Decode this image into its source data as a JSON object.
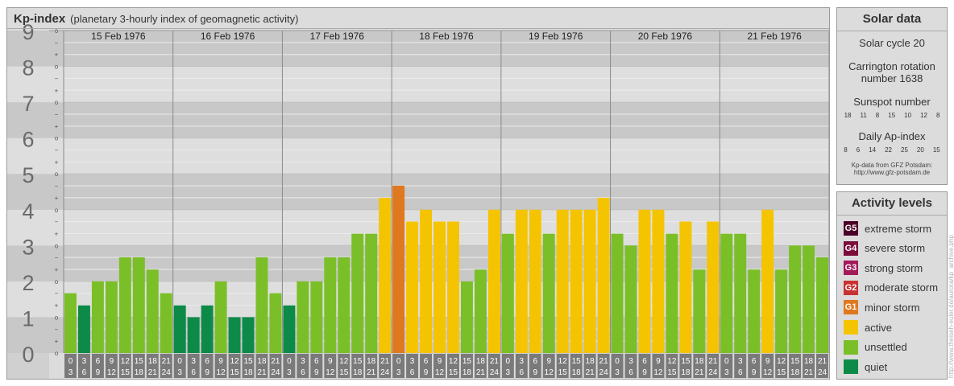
{
  "title": {
    "main": "Kp-index",
    "subtitle": "(planetary 3-hourly index of geomagnetic activity)"
  },
  "solar": {
    "header": "Solar data",
    "cycle": "Solar cycle 20",
    "rotation_line1": "Carrington rotation",
    "rotation_line2": "number 1638",
    "sunspot_label": "Sunspot number",
    "sunspot_values": [
      "18",
      "11",
      "8",
      "15",
      "10",
      "12",
      "8"
    ],
    "ap_label": "Daily Ap-index",
    "ap_values": [
      "8",
      "6",
      "14",
      "22",
      "25",
      "20",
      "15"
    ],
    "source_line1": "Kp-data from GFZ Potsdam:",
    "source_line2": "http://www.gfz-potsdam.de"
  },
  "levels": {
    "header": "Activity levels",
    "items": [
      {
        "badge": "G5",
        "label": "extreme storm",
        "color": "#4b0028"
      },
      {
        "badge": "G4",
        "label": "severe storm",
        "color": "#7b0c3c"
      },
      {
        "badge": "G3",
        "label": "strong storm",
        "color": "#a3195b"
      },
      {
        "badge": "G2",
        "label": "moderate storm",
        "color": "#c83232"
      },
      {
        "badge": "G1",
        "label": "minor storm",
        "color": "#e07820"
      },
      {
        "badge": "",
        "label": "active",
        "color": "#f5c400"
      },
      {
        "badge": "",
        "label": "unsettled",
        "color": "#7bbf28"
      },
      {
        "badge": "",
        "label": "quiet",
        "color": "#0e8a48"
      }
    ]
  },
  "watermark": "http://www.theiseh-euler.de/aurora/kp_archive.php",
  "chart_data": {
    "type": "bar",
    "title": "Kp-index",
    "ylim": [
      0,
      9
    ],
    "y_ticks": [
      "0",
      "1",
      "2",
      "3",
      "4",
      "5",
      "6",
      "7",
      "8",
      "9"
    ],
    "sub_ticks": [
      "o",
      "−",
      "+"
    ],
    "days": [
      "15 Feb 1976",
      "16 Feb 1976",
      "17 Feb 1976",
      "18 Feb 1976",
      "19 Feb 1976",
      "20 Feb 1976",
      "21 Feb 1976"
    ],
    "interval_labels": [
      [
        "0",
        "3"
      ],
      [
        "3",
        "6"
      ],
      [
        "6",
        "9"
      ],
      [
        "9",
        "12"
      ],
      [
        "12",
        "15"
      ],
      [
        "15",
        "18"
      ],
      [
        "18",
        "21"
      ],
      [
        "21",
        "24"
      ]
    ],
    "values": [
      [
        1.67,
        1.33,
        2.0,
        2.0,
        2.67,
        2.67,
        2.33,
        1.67
      ],
      [
        1.33,
        1.0,
        1.33,
        2.0,
        1.0,
        1.0,
        2.67,
        1.67
      ],
      [
        1.33,
        2.0,
        2.0,
        2.67,
        2.67,
        3.33,
        3.33,
        4.33
      ],
      [
        4.67,
        3.67,
        4.0,
        3.67,
        3.67,
        2.0,
        2.33,
        4.0
      ],
      [
        3.33,
        4.0,
        4.0,
        3.33,
        4.0,
        4.0,
        4.0,
        4.33
      ],
      [
        3.33,
        3.0,
        4.0,
        4.0,
        3.33,
        3.67,
        2.33,
        3.67
      ],
      [
        3.33,
        3.33,
        2.33,
        4.0,
        2.33,
        3.0,
        3.0,
        2.67
      ]
    ],
    "colors": {
      "quiet": "#0e8a48",
      "unsettled": "#7bbf28",
      "active": "#f5c400",
      "minor_storm": "#e07820"
    }
  }
}
